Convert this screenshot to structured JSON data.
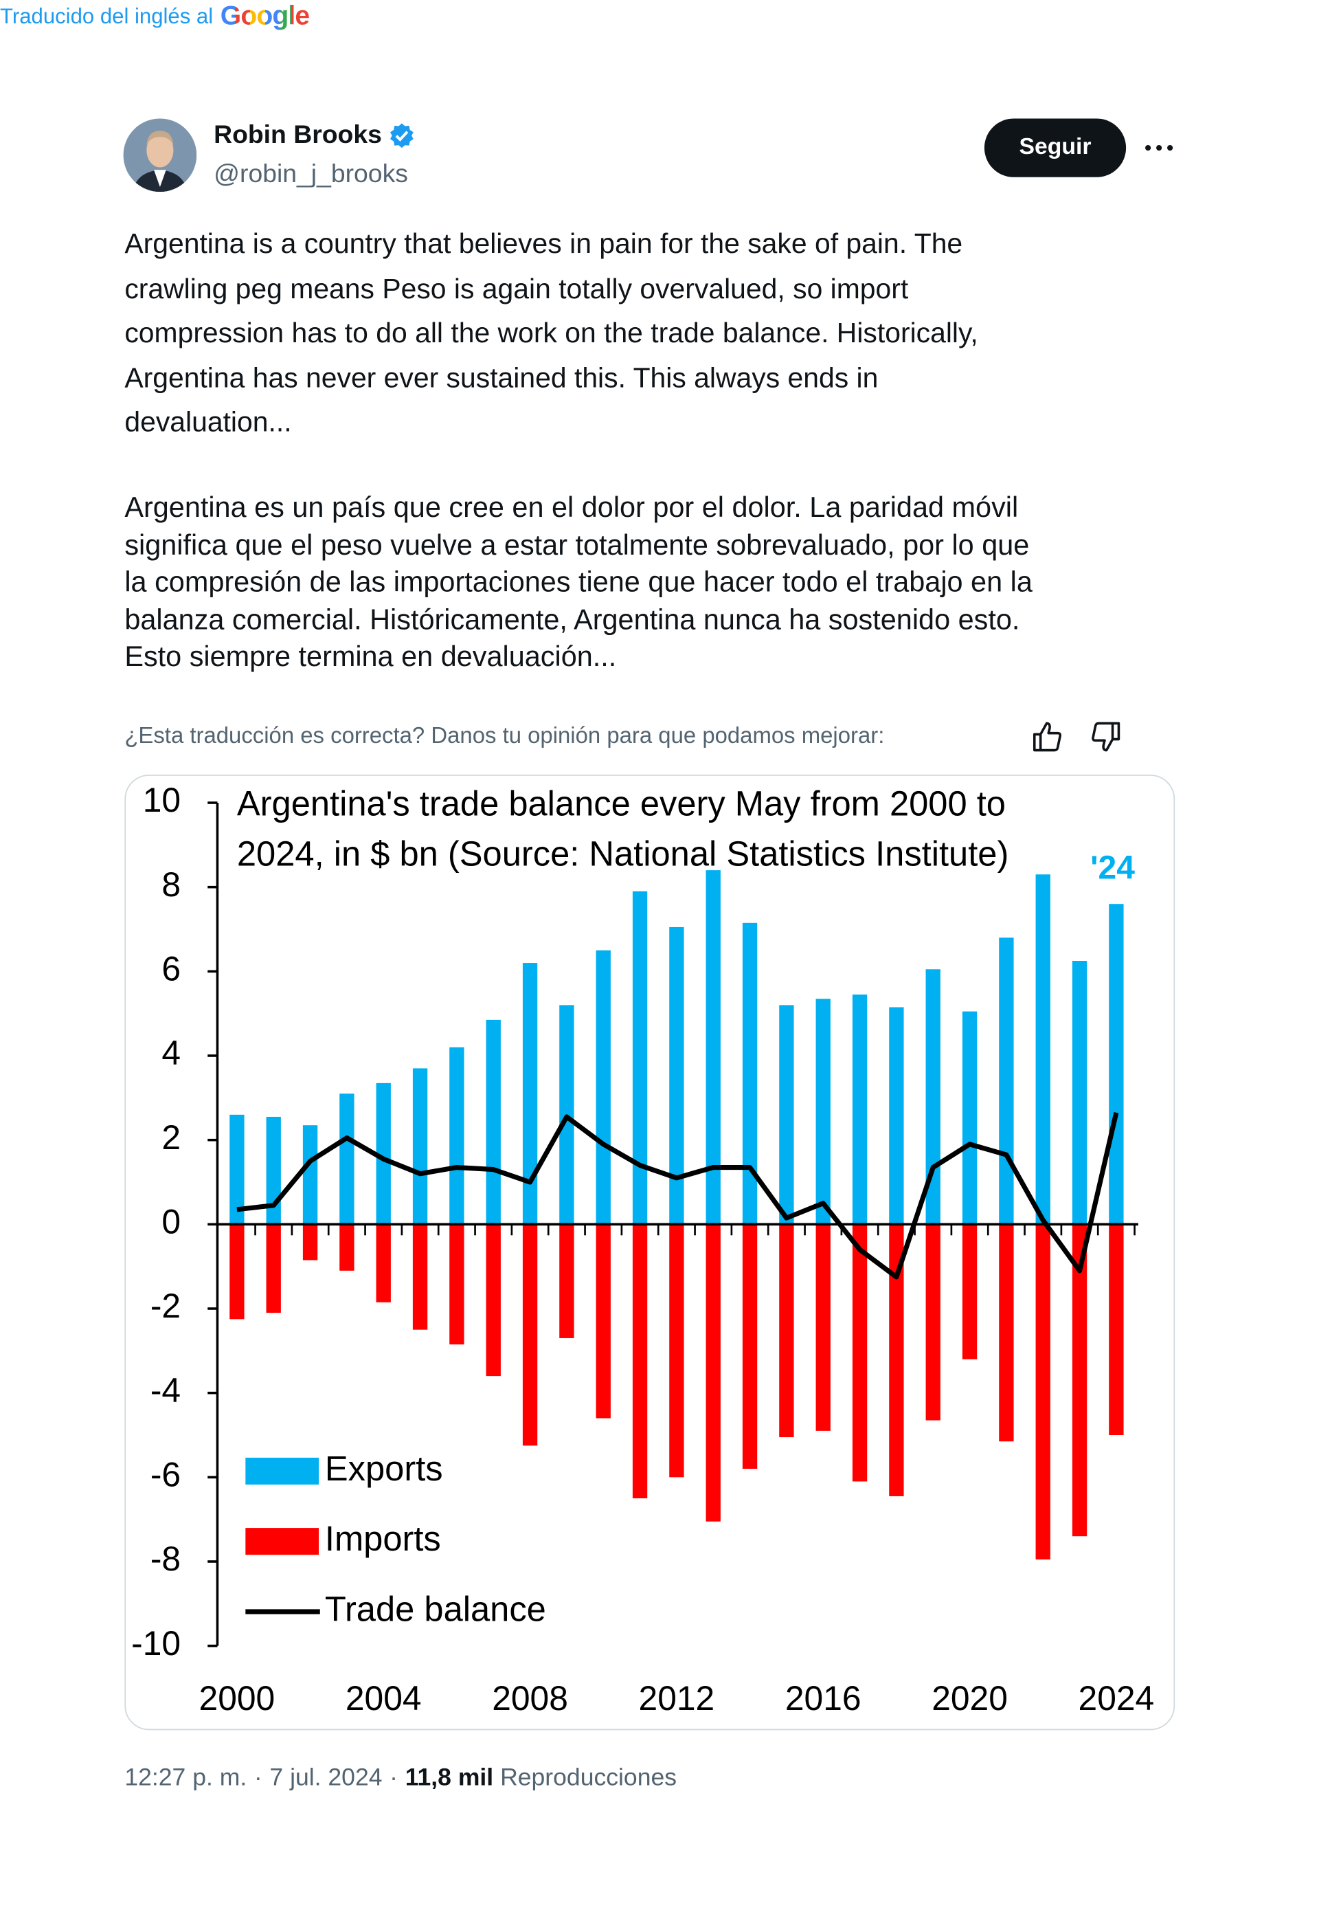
{
  "author": {
    "name": "Robin Brooks",
    "handle": "@robin_j_brooks"
  },
  "follow_button": "Seguir",
  "tweet_text": [
    "Argentina is a country that believes in pain for the sake of pain. The",
    "crawling peg means Peso is again totally overvalued, so import",
    "compression has to do all the work on the trade balance. Historically,",
    "Argentina has never ever sustained this. This always ends in",
    "devaluation..."
  ],
  "translation_note": "Traducido del inglés al",
  "translation_provider": "Google",
  "translated_text": [
    "Argentina es un país que cree en el dolor por el dolor. La paridad móvil",
    "significa que el peso vuelve a estar totalmente sobrevaluado, por lo que",
    "la compresión de las importaciones tiene que hacer todo el trabajo en la",
    "balanza comercial. Históricamente, Argentina nunca ha sostenido esto.",
    "Esto siempre termina en devaluación..."
  ],
  "feedback_prompt": "¿Esta traducción es correcta? Danos tu opinión para que podamos mejorar:",
  "time": "12:27 p. m.",
  "date": "7 jul. 2024",
  "meta_separator": "·",
  "views": "11,8 mil",
  "views_label": "Reproducciones",
  "chart_data": {
    "type": "bar",
    "title": [
      "Argentina's trade balance every May from 2000 to",
      "2024, in $ bn (Source: National Statistics Institute)"
    ],
    "annotation": "'24",
    "x": [
      2000,
      2001,
      2002,
      2003,
      2004,
      2005,
      2006,
      2007,
      2008,
      2009,
      2010,
      2011,
      2012,
      2013,
      2014,
      2015,
      2016,
      2017,
      2018,
      2019,
      2020,
      2021,
      2022,
      2023,
      2024
    ],
    "xlim": [
      1999.5,
      2024.5
    ],
    "xticks": [
      2000,
      2004,
      2008,
      2012,
      2016,
      2020,
      2024
    ],
    "ylim": [
      -10,
      10
    ],
    "yticks": [
      -10,
      -8,
      -6,
      -4,
      -2,
      0,
      2,
      4,
      6,
      8,
      10
    ],
    "grid": false,
    "legend": "lower left",
    "series": [
      {
        "name": "Exports",
        "type": "bar",
        "color": "#00b0f0",
        "values": [
          2.6,
          2.55,
          2.35,
          3.1,
          3.35,
          3.7,
          4.2,
          4.85,
          6.2,
          5.2,
          6.5,
          7.9,
          7.05,
          8.4,
          7.15,
          5.2,
          5.35,
          5.45,
          5.15,
          6.05,
          5.05,
          6.8,
          8.3,
          6.25,
          7.6
        ]
      },
      {
        "name": "Imports",
        "type": "bar",
        "color": "#ff0000",
        "values": [
          -2.25,
          -2.1,
          -0.85,
          -1.1,
          -1.85,
          -2.5,
          -2.85,
          -3.6,
          -5.25,
          -2.7,
          -4.6,
          -6.5,
          -6.0,
          -7.05,
          -5.8,
          -5.05,
          -4.9,
          -6.1,
          -6.45,
          -4.65,
          -3.2,
          -5.15,
          -7.95,
          -7.4,
          -5.0
        ]
      },
      {
        "name": "Trade balance",
        "type": "line",
        "color": "#000000",
        "values": [
          0.35,
          0.45,
          1.5,
          2.05,
          1.55,
          1.2,
          1.35,
          1.3,
          1.0,
          2.55,
          1.9,
          1.4,
          1.1,
          1.35,
          1.35,
          0.15,
          0.5,
          -0.6,
          -1.25,
          1.35,
          1.9,
          1.65,
          0.1,
          -1.1,
          2.65
        ]
      }
    ]
  }
}
